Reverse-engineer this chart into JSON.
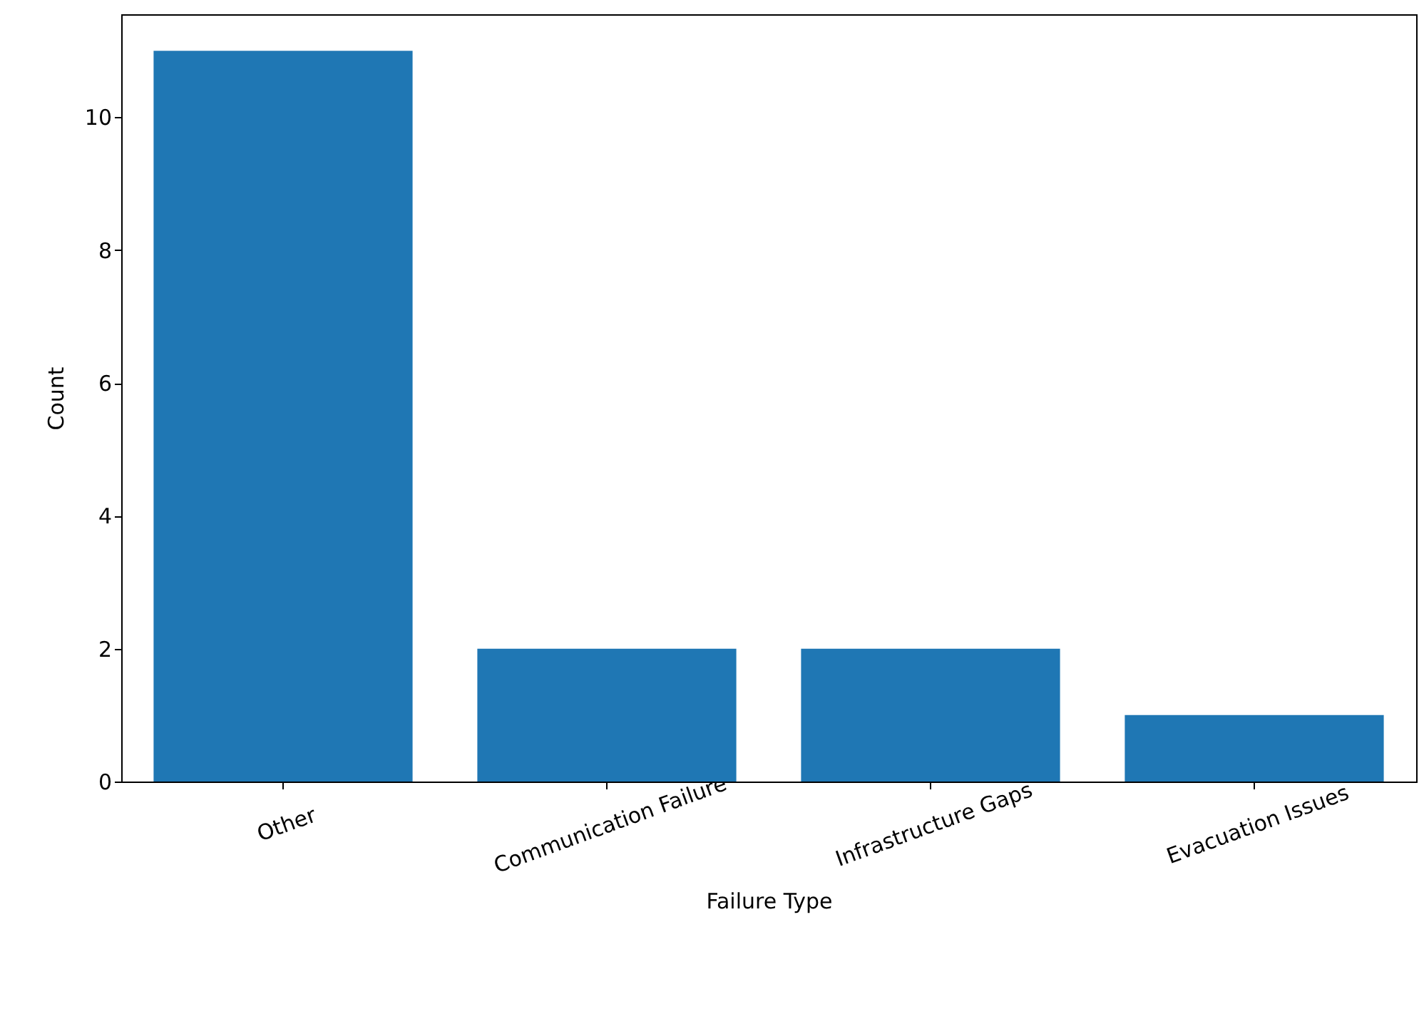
{
  "chart_data": {
    "type": "bar",
    "xlabel": "Failure Type",
    "ylabel": "Count",
    "categories": [
      "Other",
      "Communication Failure",
      "Infrastructure Gaps",
      "Evacuation Issues"
    ],
    "values": [
      11,
      2,
      2,
      1
    ],
    "color": "#1f77b4",
    "ylim": [
      0,
      11.55
    ],
    "yticks": [
      0,
      2,
      4,
      6,
      8,
      10
    ],
    "grid": false
  }
}
